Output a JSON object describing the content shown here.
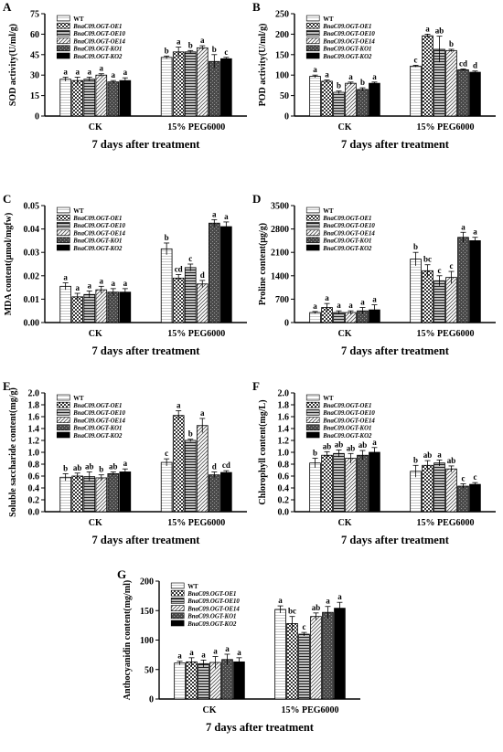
{
  "figure": {
    "common": {
      "legend": [
        "WT",
        "BnaC09.OGT-OE1",
        "BnaC09.OGT-OE10",
        "BnaC09.OGT-OE14",
        "BnaC09.OGT-KO1",
        "BnaC09.OGT-KO2"
      ],
      "categories": [
        "CK",
        "15% PEG6000"
      ],
      "xlabel": "7 days after treatment"
    }
  },
  "chart_data": [
    {
      "panel": "A",
      "type": "bar",
      "ylabel": "SOD activity(U/ml/g)",
      "ylim": [
        0,
        75
      ],
      "yticks": [
        0,
        15,
        30,
        45,
        60,
        75
      ],
      "categories": [
        "CK",
        "15% PEG6000"
      ],
      "series": [
        {
          "name": "WT",
          "values": [
            27,
            43
          ],
          "errors": [
            1.5,
            1
          ],
          "letters": [
            "a",
            "b"
          ]
        },
        {
          "name": "BnaC09.OGT-OE1",
          "values": [
            26,
            47
          ],
          "errors": [
            2.5,
            3.5
          ],
          "letters": [
            "a",
            "a"
          ]
        },
        {
          "name": "BnaC09.OGT-OE10",
          "values": [
            27,
            47
          ],
          "errors": [
            1.5,
            1
          ],
          "letters": [
            "a",
            "b"
          ]
        },
        {
          "name": "BnaC09.OGT-OE14",
          "values": [
            30,
            50
          ],
          "errors": [
            1,
            1.5
          ],
          "letters": [
            "a",
            "a"
          ]
        },
        {
          "name": "BnaC09.OGT-KO1",
          "values": [
            25,
            40
          ],
          "errors": [
            1,
            5
          ],
          "letters": [
            "a",
            "b"
          ]
        },
        {
          "name": "BnaC09.OGT-KO2",
          "values": [
            26,
            42
          ],
          "errors": [
            2,
            1
          ],
          "letters": [
            "a",
            "c"
          ]
        }
      ],
      "xlabel": "7 days after treatment"
    },
    {
      "panel": "B",
      "type": "bar",
      "ylabel": "POD activity(U/ml/g)",
      "ylim": [
        0,
        250
      ],
      "yticks": [
        0,
        50,
        100,
        150,
        200,
        250
      ],
      "categories": [
        "CK",
        "15% PEG6000"
      ],
      "series": [
        {
          "name": "WT",
          "values": [
            97,
            122
          ],
          "errors": [
            3,
            2
          ],
          "letters": [
            "a",
            "c"
          ]
        },
        {
          "name": "BnaC09.OGT-OE1",
          "values": [
            85,
            196
          ],
          "errors": [
            3,
            4
          ],
          "letters": [
            "a",
            "a"
          ]
        },
        {
          "name": "BnaC09.OGT-OE10",
          "values": [
            58,
            163
          ],
          "errors": [
            3,
            32
          ],
          "letters": [
            "b",
            "ab"
          ]
        },
        {
          "name": "BnaC09.OGT-OE14",
          "values": [
            80,
            160
          ],
          "errors": [
            3,
            3
          ],
          "letters": [
            "a",
            "b"
          ]
        },
        {
          "name": "BnaC09.OGT-KO1",
          "values": [
            65,
            113
          ],
          "errors": [
            4,
            2
          ],
          "letters": [
            "b",
            "cd"
          ]
        },
        {
          "name": "BnaC09.OGT-KO2",
          "values": [
            80,
            107
          ],
          "errors": [
            3,
            3
          ],
          "letters": [
            "a",
            "d"
          ]
        }
      ],
      "xlabel": "7 days after treatment"
    },
    {
      "panel": "C",
      "type": "bar",
      "ylabel": "MDA content(μmol/mgfw)",
      "ylim": [
        0,
        0.05
      ],
      "yticks": [
        0,
        0.01,
        0.02,
        0.03,
        0.04,
        0.05
      ],
      "categories": [
        "CK",
        "15% PEG6000"
      ],
      "series": [
        {
          "name": "WT",
          "values": [
            0.0155,
            0.0315
          ],
          "errors": [
            0.0015,
            0.0025
          ],
          "letters": [
            "a",
            "b"
          ]
        },
        {
          "name": "BnaC09.OGT-OE1",
          "values": [
            0.011,
            0.019
          ],
          "errors": [
            0.0015,
            0.0015
          ],
          "letters": [
            "a",
            "cd"
          ]
        },
        {
          "name": "BnaC09.OGT-OE10",
          "values": [
            0.012,
            0.0235
          ],
          "errors": [
            0.0015,
            0.0015
          ],
          "letters": [
            "a",
            "c"
          ]
        },
        {
          "name": "BnaC09.OGT-OE14",
          "values": [
            0.014,
            0.0165
          ],
          "errors": [
            0.0015,
            0.0015
          ],
          "letters": [
            "a",
            "d"
          ]
        },
        {
          "name": "BnaC09.OGT-KO1",
          "values": [
            0.013,
            0.0425
          ],
          "errors": [
            0.0015,
            0.0015
          ],
          "letters": [
            "a",
            "a"
          ]
        },
        {
          "name": "BnaC09.OGT-KO2",
          "values": [
            0.013,
            0.041
          ],
          "errors": [
            0.0015,
            0.002
          ],
          "letters": [
            "a",
            "a"
          ]
        }
      ],
      "xlabel": "7 days after treatment"
    },
    {
      "panel": "D",
      "type": "bar",
      "ylabel": "Proline content(μg/g)",
      "ylim": [
        0,
        3500
      ],
      "yticks": [
        0,
        700,
        1400,
        2100,
        2800,
        3500
      ],
      "categories": [
        "CK",
        "15% PEG6000"
      ],
      "series": [
        {
          "name": "WT",
          "values": [
            300,
            1900
          ],
          "errors": [
            30,
            200
          ],
          "letters": [
            "a",
            "b"
          ]
        },
        {
          "name": "BnaC09.OGT-OE1",
          "values": [
            450,
            1550
          ],
          "errors": [
            120,
            180
          ],
          "letters": [
            "a",
            "bc"
          ]
        },
        {
          "name": "BnaC09.OGT-OE10",
          "values": [
            300,
            1250
          ],
          "errors": [
            50,
            150
          ],
          "letters": [
            "a",
            "c"
          ]
        },
        {
          "name": "BnaC09.OGT-OE14",
          "values": [
            300,
            1350
          ],
          "errors": [
            50,
            180
          ],
          "letters": [
            "a",
            "c"
          ]
        },
        {
          "name": "BnaC09.OGT-KO1",
          "values": [
            350,
            2550
          ],
          "errors": [
            100,
            150
          ],
          "letters": [
            "a",
            "a"
          ]
        },
        {
          "name": "BnaC09.OGT-KO2",
          "values": [
            380,
            2450
          ],
          "errors": [
            150,
            100
          ],
          "letters": [
            "a",
            "a"
          ]
        }
      ],
      "xlabel": "7 days after treatment"
    },
    {
      "panel": "E",
      "type": "bar",
      "ylabel": "Soluble saccharide content(mg/g)",
      "ylim": [
        0,
        2.0
      ],
      "yticks": [
        0,
        0.2,
        0.4,
        0.6,
        0.8,
        1.0,
        1.2,
        1.4,
        1.6,
        1.8,
        2.0
      ],
      "categories": [
        "CK",
        "15% PEG6000"
      ],
      "series": [
        {
          "name": "WT",
          "values": [
            0.58,
            0.83
          ],
          "errors": [
            0.06,
            0.06
          ],
          "letters": [
            "b",
            "c"
          ]
        },
        {
          "name": "BnaC09.OGT-OE1",
          "values": [
            0.6,
            1.62
          ],
          "errors": [
            0.05,
            0.08
          ],
          "letters": [
            "ab",
            "a"
          ]
        },
        {
          "name": "BnaC09.OGT-OE10",
          "values": [
            0.59,
            1.2
          ],
          "errors": [
            0.08,
            0.02
          ],
          "letters": [
            "ab",
            "b"
          ]
        },
        {
          "name": "BnaC09.OGT-OE14",
          "values": [
            0.57,
            1.45
          ],
          "errors": [
            0.05,
            0.12
          ],
          "letters": [
            "b",
            "a"
          ]
        },
        {
          "name": "BnaC09.OGT-KO1",
          "values": [
            0.64,
            0.62
          ],
          "errors": [
            0.03,
            0.05
          ],
          "letters": [
            "ab",
            "d"
          ]
        },
        {
          "name": "BnaC09.OGT-KO2",
          "values": [
            0.67,
            0.66
          ],
          "errors": [
            0.05,
            0.03
          ],
          "letters": [
            "a",
            "cd"
          ]
        }
      ],
      "xlabel": "7 days after treatment"
    },
    {
      "panel": "F",
      "type": "bar",
      "ylabel": "Chlorophyll content(mg/L)",
      "ylim": [
        0,
        2.0
      ],
      "yticks": [
        0,
        0.2,
        0.4,
        0.6,
        0.8,
        1.0,
        1.2,
        1.4,
        1.6,
        1.8,
        2.0
      ],
      "categories": [
        "CK",
        "15% PEG6000"
      ],
      "series": [
        {
          "name": "WT",
          "values": [
            0.82,
            0.68
          ],
          "errors": [
            0.08,
            0.1
          ],
          "letters": [
            "b",
            "b"
          ]
        },
        {
          "name": "BnaC09.OGT-OE1",
          "values": [
            0.95,
            0.78
          ],
          "errors": [
            0.06,
            0.08
          ],
          "letters": [
            "ab",
            "ab"
          ]
        },
        {
          "name": "BnaC09.OGT-OE10",
          "values": [
            0.98,
            0.82
          ],
          "errors": [
            0.06,
            0.05
          ],
          "letters": [
            "ab",
            "a"
          ]
        },
        {
          "name": "BnaC09.OGT-OE14",
          "values": [
            0.9,
            0.72
          ],
          "errors": [
            0.08,
            0.05
          ],
          "letters": [
            "ab",
            "ab"
          ]
        },
        {
          "name": "BnaC09.OGT-KO1",
          "values": [
            0.95,
            0.43
          ],
          "errors": [
            0.08,
            0.04
          ],
          "letters": [
            "ab",
            "c"
          ]
        },
        {
          "name": "BnaC09.OGT-KO2",
          "values": [
            1.0,
            0.46
          ],
          "errors": [
            0.08,
            0.03
          ],
          "letters": [
            "a",
            "c"
          ]
        }
      ],
      "xlabel": "7 days after treatment"
    },
    {
      "panel": "G",
      "type": "bar",
      "ylabel": "Anthocyanidin content(mg/ml)",
      "ylim": [
        0,
        200
      ],
      "yticks": [
        0,
        50,
        100,
        150,
        200
      ],
      "categories": [
        "CK",
        "15% PEG6000"
      ],
      "series": [
        {
          "name": "WT",
          "values": [
            61,
            152
          ],
          "errors": [
            3,
            6
          ],
          "letters": [
            "a",
            "a"
          ]
        },
        {
          "name": "BnaC09.OGT-OE1",
          "values": [
            63,
            128
          ],
          "errors": [
            7,
            12
          ],
          "letters": [
            "a",
            "bc"
          ]
        },
        {
          "name": "BnaC09.OGT-OE10",
          "values": [
            60,
            110
          ],
          "errors": [
            6,
            3
          ],
          "letters": [
            "a",
            "c"
          ]
        },
        {
          "name": "BnaC09.OGT-OE14",
          "values": [
            62,
            140
          ],
          "errors": [
            10,
            6
          ],
          "letters": [
            "a",
            "ab"
          ]
        },
        {
          "name": "BnaC09.OGT-KO1",
          "values": [
            67,
            147
          ],
          "errors": [
            9,
            10
          ],
          "letters": [
            "a",
            "a"
          ]
        },
        {
          "name": "BnaC09.OGT-KO2",
          "values": [
            63,
            154
          ],
          "errors": [
            7,
            10
          ],
          "letters": [
            "a",
            "a"
          ]
        }
      ],
      "xlabel": "7 days after treatment"
    }
  ]
}
